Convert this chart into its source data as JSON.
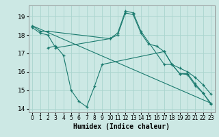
{
  "xlabel": "Humidex (Indice chaleur)",
  "background_color": "#cce8e4",
  "grid_color": "#aad4ce",
  "line_color": "#1a7a6e",
  "xlim": [
    -0.5,
    23.5
  ],
  "ylim": [
    13.8,
    19.6
  ],
  "xticks": [
    0,
    1,
    2,
    3,
    4,
    5,
    6,
    7,
    8,
    9,
    10,
    11,
    12,
    13,
    14,
    15,
    16,
    17,
    18,
    19,
    20,
    21,
    22,
    23
  ],
  "yticks": [
    14,
    15,
    16,
    17,
    18,
    19
  ],
  "series": [
    {
      "x": [
        0,
        1,
        2,
        10,
        11,
        12,
        13,
        14,
        17,
        18,
        19,
        20,
        21,
        22,
        23
      ],
      "y": [
        18.5,
        18.2,
        18.2,
        17.8,
        18.1,
        19.3,
        19.2,
        18.2,
        16.4,
        16.4,
        15.9,
        15.9,
        15.35,
        14.85,
        14.3
      ],
      "marker": true
    },
    {
      "x": [
        0,
        1,
        2,
        3,
        10,
        11,
        12,
        13,
        14,
        15,
        16,
        17,
        18,
        19,
        20,
        21,
        22,
        23
      ],
      "y": [
        18.4,
        18.1,
        18.0,
        17.3,
        17.8,
        18.0,
        19.2,
        19.1,
        18.1,
        17.5,
        17.4,
        17.1,
        16.4,
        16.2,
        16.0,
        15.7,
        15.3,
        14.8
      ],
      "marker": true
    },
    {
      "x": [
        2,
        3,
        4,
        5,
        6,
        7,
        8,
        9,
        17,
        18,
        19,
        20,
        21,
        22,
        23
      ],
      "y": [
        17.3,
        17.4,
        16.9,
        15.0,
        14.4,
        14.1,
        15.2,
        16.4,
        17.1,
        16.4,
        15.9,
        15.85,
        15.25,
        14.85,
        14.25
      ],
      "marker": true
    },
    {
      "x": [
        0,
        23
      ],
      "y": [
        18.5,
        14.3
      ],
      "marker": false
    }
  ]
}
